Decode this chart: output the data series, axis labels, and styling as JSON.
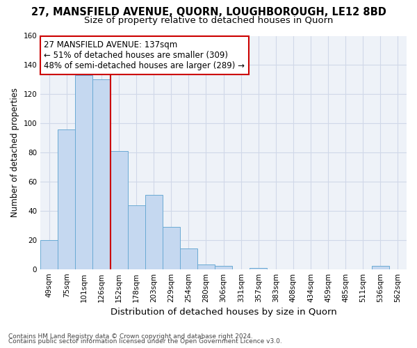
{
  "title1": "27, MANSFIELD AVENUE, QUORN, LOUGHBOROUGH, LE12 8BD",
  "title2": "Size of property relative to detached houses in Quorn",
  "xlabel": "Distribution of detached houses by size in Quorn",
  "ylabel": "Number of detached properties",
  "footer1": "Contains HM Land Registry data © Crown copyright and database right 2024.",
  "footer2": "Contains public sector information licensed under the Open Government Licence v3.0.",
  "annotation_line1": "27 MANSFIELD AVENUE: 137sqm",
  "annotation_line2": "← 51% of detached houses are smaller (309)",
  "annotation_line3": "48% of semi-detached houses are larger (289) →",
  "bar_color": "#c5d8f0",
  "bar_edge_color": "#6aaad4",
  "vline_color": "#cc0000",
  "vline_x": 3.5,
  "categories": [
    "49sqm",
    "75sqm",
    "101sqm",
    "126sqm",
    "152sqm",
    "178sqm",
    "203sqm",
    "229sqm",
    "254sqm",
    "280sqm",
    "306sqm",
    "331sqm",
    "357sqm",
    "383sqm",
    "408sqm",
    "434sqm",
    "459sqm",
    "485sqm",
    "511sqm",
    "536sqm",
    "562sqm"
  ],
  "values": [
    20,
    96,
    133,
    130,
    81,
    44,
    51,
    29,
    14,
    3,
    2,
    0,
    1,
    0,
    0,
    0,
    0,
    0,
    0,
    2,
    0
  ],
  "ylim": [
    0,
    160
  ],
  "yticks": [
    0,
    20,
    40,
    60,
    80,
    100,
    120,
    140,
    160
  ],
  "grid_color": "#d0d8e8",
  "bg_color": "#eef2f8",
  "annotation_box_color": "#ffffff",
  "annotation_box_edge": "#cc0000",
  "title1_fontsize": 10.5,
  "title2_fontsize": 9.5,
  "ylabel_fontsize": 8.5,
  "xlabel_fontsize": 9.5,
  "tick_fontsize": 7.5,
  "annotation_fontsize": 8.5,
  "footer_fontsize": 6.5
}
